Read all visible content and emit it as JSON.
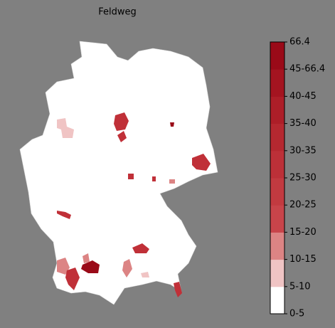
{
  "title": "Feldweg",
  "colorbar": {
    "labels": [
      "0-5",
      "5-10",
      "10-15",
      "15-20",
      "20-25",
      "25-30",
      "30-35",
      "35-40",
      "40-45",
      "45-66.4",
      "66.4"
    ],
    "colors": [
      "#ffffff",
      "#f0c4c4",
      "#dc8484",
      "#c8444a",
      "#c23a40",
      "#bc3038",
      "#b52830",
      "#ad1e28",
      "#a41420",
      "#9a0a18"
    ]
  }
}
